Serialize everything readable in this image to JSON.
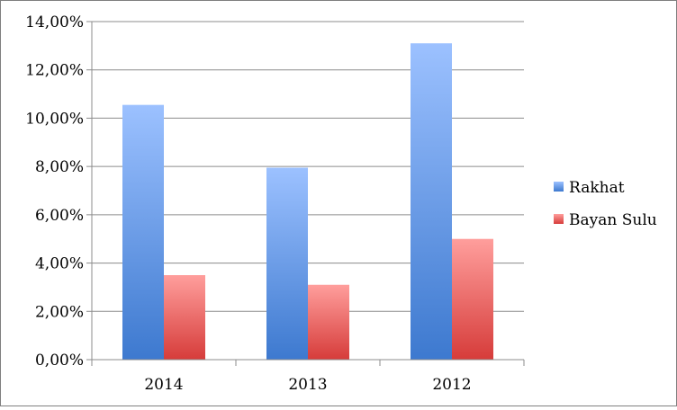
{
  "chart_data": {
    "type": "bar",
    "categories": [
      "2014",
      "2013",
      "2012"
    ],
    "series": [
      {
        "name": "Rakhat",
        "values": [
          10.55,
          7.95,
          13.1
        ],
        "color": "#4a7ed1"
      },
      {
        "name": "Bayan Sulu",
        "values": [
          3.5,
          3.1,
          5.0
        ],
        "color": "#d9413f"
      }
    ],
    "ylim": [
      0,
      14
    ],
    "yticks": [
      "0,00%",
      "2,00%",
      "4,00%",
      "6,00%",
      "8,00%",
      "10,00%",
      "12,00%",
      "14,00%"
    ],
    "ytick_values": [
      0,
      2,
      4,
      6,
      8,
      10,
      12,
      14
    ],
    "grid": true,
    "legend": "right"
  }
}
